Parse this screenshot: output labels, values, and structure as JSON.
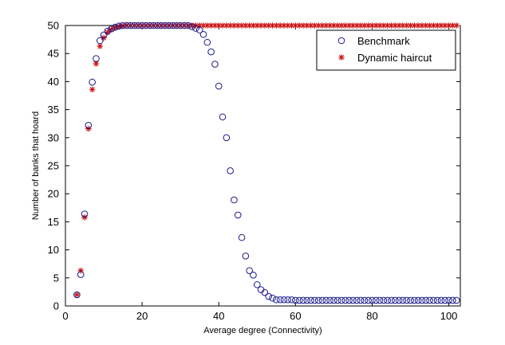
{
  "chart_data": {
    "type": "scatter",
    "xlabel": "Average degree (Connectivity)",
    "ylabel": "Number of banks that hoard",
    "xlim": [
      0,
      103
    ],
    "ylim": [
      0,
      50
    ],
    "xticks": [
      "0",
      "20",
      "40",
      "60",
      "80",
      "100"
    ],
    "yticks": [
      "0",
      "5",
      "10",
      "15",
      "20",
      "25",
      "30",
      "35",
      "40",
      "45",
      "50"
    ],
    "grid": false,
    "legend_position": "top-right",
    "colors": {
      "benchmark": "#1a1a8c",
      "dynamic": "#cc1111",
      "axis": "#000000"
    },
    "series": [
      {
        "name": "Benchmark",
        "marker": "circle",
        "x": [
          3,
          4,
          5,
          6,
          7,
          8,
          9,
          10,
          11,
          12,
          13,
          14,
          15,
          16,
          17,
          18,
          19,
          20,
          21,
          22,
          23,
          24,
          25,
          26,
          27,
          28,
          29,
          30,
          31,
          32,
          33,
          34,
          35,
          36,
          37,
          38,
          39,
          40,
          41,
          42,
          43,
          44,
          45,
          46,
          47,
          48,
          49,
          50,
          51,
          52,
          53,
          54,
          55,
          56,
          57,
          58,
          59,
          60,
          61,
          62,
          63,
          64,
          65,
          66,
          67,
          68,
          69,
          70,
          71,
          72,
          73,
          74,
          75,
          76,
          77,
          78,
          79,
          80,
          81,
          82,
          83,
          84,
          85,
          86,
          87,
          88,
          89,
          90,
          91,
          92,
          93,
          94,
          95,
          96,
          97,
          98,
          99,
          100,
          101,
          102
        ],
        "y": [
          2,
          5.6,
          16.4,
          32.2,
          39.9,
          44.1,
          47.3,
          48.3,
          49,
          49.4,
          49.7,
          49.9,
          50,
          50,
          50,
          50,
          50,
          50,
          50,
          50,
          50,
          50,
          50,
          50,
          50,
          50,
          50,
          50,
          50,
          50,
          49.8,
          49.5,
          49.2,
          48.4,
          47,
          45.3,
          43.1,
          39.2,
          33.7,
          30,
          24.1,
          18.9,
          16.2,
          12.2,
          8.9,
          6.3,
          5.5,
          3.8,
          2.9,
          2.4,
          1.7,
          1.4,
          1.1,
          1.1,
          1.1,
          1.1,
          1.1,
          1,
          1,
          1,
          1,
          1,
          1,
          1,
          1,
          1,
          1,
          1,
          1,
          1,
          1,
          1,
          1,
          1,
          1,
          1,
          1,
          1,
          1,
          1,
          1,
          1,
          1,
          1,
          1,
          1,
          1,
          1,
          1,
          1,
          1,
          1,
          1,
          1,
          1,
          1,
          1,
          1,
          1,
          1
        ]
      },
      {
        "name": "Dynamic haircut",
        "marker": "asterisk",
        "x": [
          3,
          4,
          5,
          6,
          7,
          8,
          9,
          10,
          11,
          12,
          13,
          14,
          15,
          16,
          17,
          18,
          19,
          20,
          21,
          22,
          23,
          24,
          25,
          26,
          27,
          28,
          29,
          30,
          31,
          32,
          33,
          34,
          35,
          36,
          37,
          38,
          39,
          40,
          41,
          42,
          43,
          44,
          45,
          46,
          47,
          48,
          49,
          50,
          51,
          52,
          53,
          54,
          55,
          56,
          57,
          58,
          59,
          60,
          61,
          62,
          63,
          64,
          65,
          66,
          67,
          68,
          69,
          70,
          71,
          72,
          73,
          74,
          75,
          76,
          77,
          78,
          79,
          80,
          81,
          82,
          83,
          84,
          85,
          86,
          87,
          88,
          89,
          90,
          91,
          92,
          93,
          94,
          95,
          96,
          97,
          98,
          99,
          100,
          101,
          102
        ],
        "y": [
          2,
          6.3,
          15.8,
          31.6,
          38.6,
          43.2,
          46.3,
          47.8,
          48.8,
          49.3,
          49.6,
          49.8,
          49.9,
          50,
          50,
          50,
          50,
          50,
          50,
          50,
          50,
          50,
          50,
          50,
          50,
          50,
          50,
          50,
          50,
          50,
          50,
          50,
          50,
          50,
          50,
          50,
          50,
          50,
          50,
          50,
          50,
          50,
          50,
          50,
          50,
          50,
          50,
          50,
          50,
          50,
          50,
          50,
          50,
          50,
          50,
          50,
          50,
          50,
          50,
          50,
          50,
          50,
          50,
          50,
          50,
          50,
          50,
          50,
          50,
          50,
          50,
          50,
          50,
          50,
          50,
          50,
          50,
          50,
          50,
          50,
          50,
          50,
          50,
          50,
          50,
          50,
          50,
          50,
          50,
          50,
          50,
          50,
          50,
          50,
          50,
          50,
          50,
          50,
          50,
          50
        ]
      }
    ]
  }
}
